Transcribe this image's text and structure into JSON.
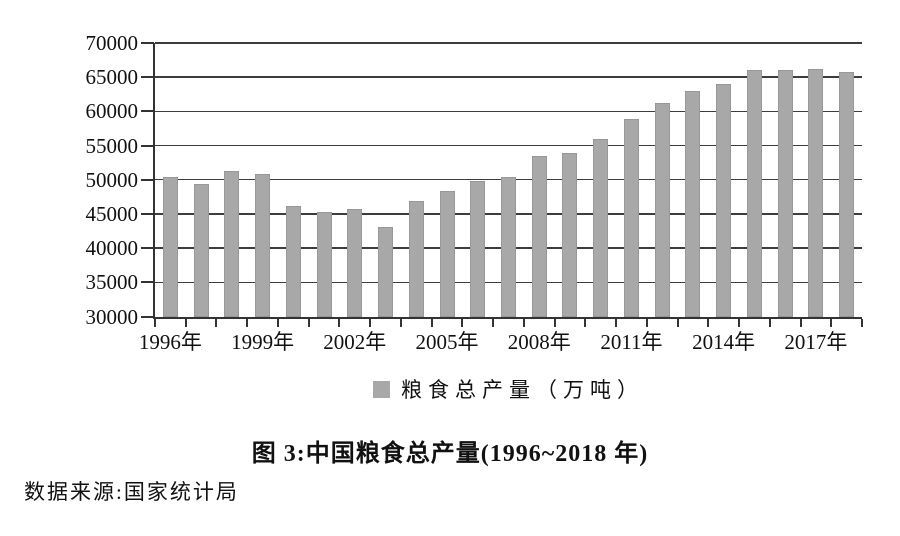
{
  "figure": {
    "caption": "图 3:中国粮食总产量(1996~2018 年)",
    "source": "数据来源:国家统计局"
  },
  "legend": {
    "label": "粮食总产量（万吨）",
    "marker_color": "#a8a8a8"
  },
  "chart_data": {
    "type": "bar",
    "title": "图 3:中国粮食总产量(1996~2018 年)",
    "xlabel": "",
    "ylabel": "",
    "unit": "万吨",
    "categories": [
      "1996",
      "1997",
      "1998",
      "1999",
      "2000",
      "2001",
      "2002",
      "2003",
      "2004",
      "2005",
      "2006",
      "2007",
      "2008",
      "2009",
      "2010",
      "2011",
      "2012",
      "2013",
      "2014",
      "2015",
      "2016",
      "2017",
      "2018"
    ],
    "values": [
      50454,
      49417,
      51230,
      50839,
      46218,
      45264,
      45706,
      43070,
      46947,
      48402,
      49804,
      50414,
      53434,
      53941,
      55911,
      58849,
      61223,
      63048,
      63965,
      66060,
      66044,
      66161,
      65789
    ],
    "series_name": "粮食总产量（万吨）",
    "ylim": [
      30000,
      70000
    ],
    "y_tick_step": 5000,
    "y_tick_labels": [
      "30000",
      "35000",
      "40000",
      "45000",
      "50000",
      "55000",
      "60000",
      "65000",
      "70000"
    ],
    "x_tick_labels": [
      "1996年",
      "1999年",
      "2002年",
      "2005年",
      "2008年",
      "2011年",
      "2014年",
      "2017年"
    ],
    "x_tick_positions": [
      0,
      3,
      6,
      9,
      12,
      15,
      18,
      21
    ],
    "grid": true,
    "legend_position": "bottom",
    "bar_color": "#a8a8a8",
    "axis_color": "#333333"
  }
}
